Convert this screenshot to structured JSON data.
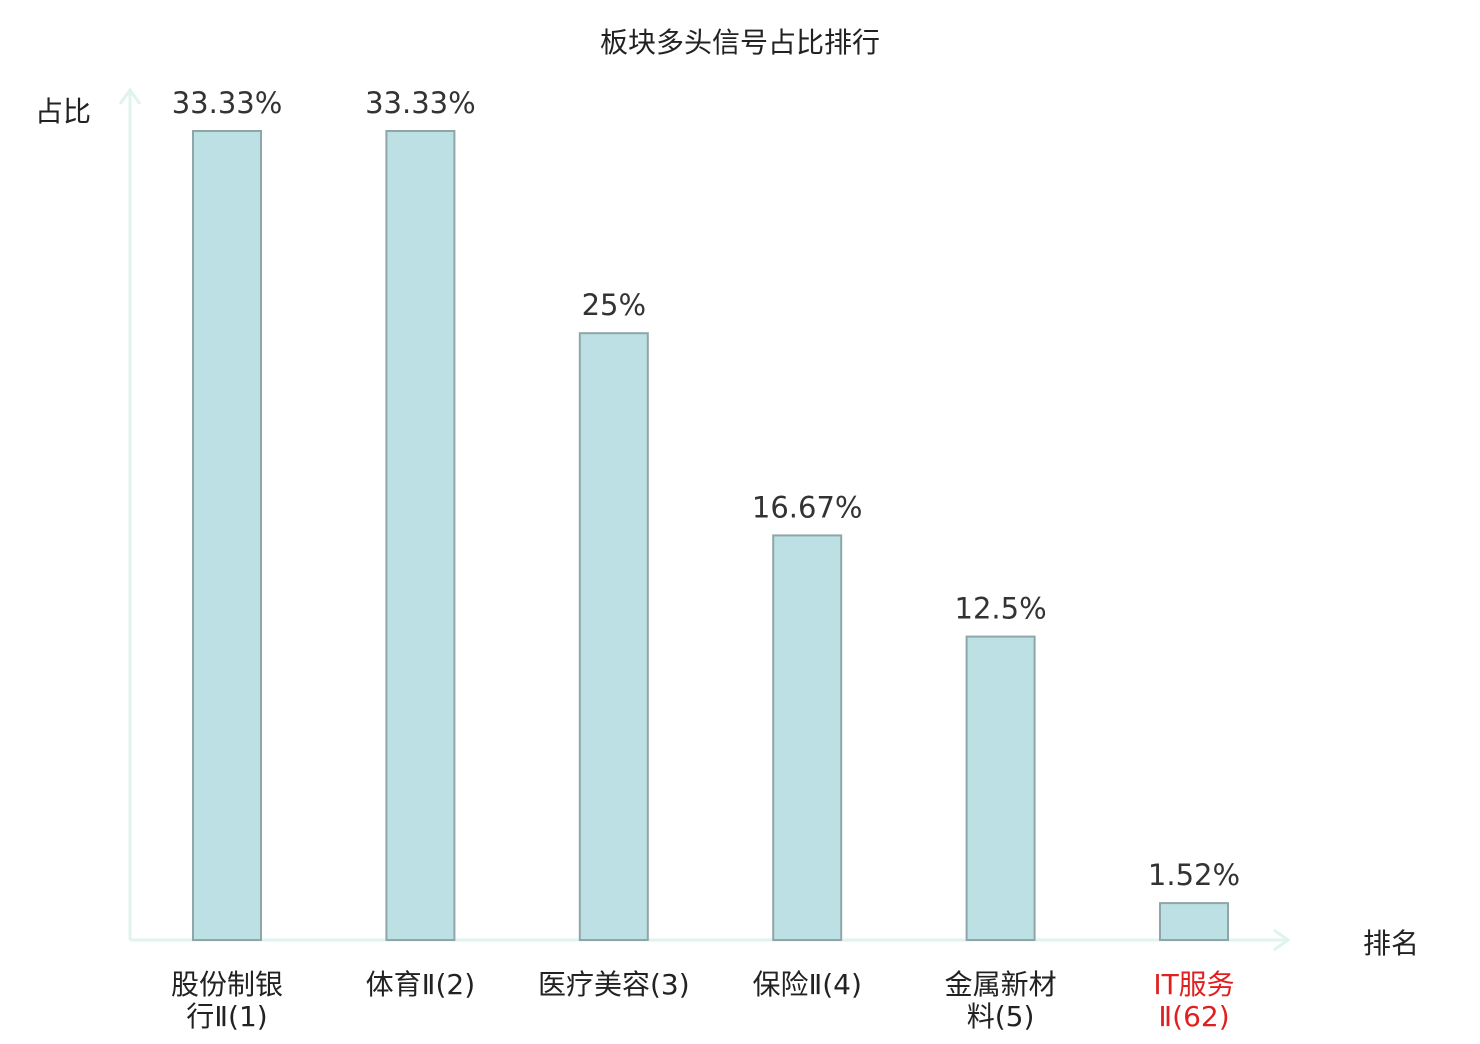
{
  "chart_data": {
    "type": "bar",
    "title": "板块多头信号占比排行",
    "ylabel": "占比",
    "xlabel": "排名",
    "ylim": [
      0,
      33.33
    ],
    "grid": false,
    "categories": [
      [
        "股份制银",
        "行Ⅱ(1)"
      ],
      [
        "体育Ⅱ(2)"
      ],
      [
        "医疗美容(3)"
      ],
      [
        "保险Ⅱ(4)"
      ],
      [
        "金属新材",
        "料(5)"
      ],
      [
        "IT服务",
        "Ⅱ(62)"
      ]
    ],
    "values": [
      33.33,
      33.33,
      25,
      16.67,
      12.5,
      1.52
    ],
    "value_labels": [
      "33.33%",
      "33.33%",
      "25%",
      "16.67%",
      "12.5%",
      "1.52%"
    ],
    "highlight_index": 5,
    "colors": {
      "bar_fill": "#bce0e3",
      "bar_stroke": "#8fa6a8",
      "axis": "#e0f3ef",
      "text": "#333333",
      "highlight_text": "#e02020"
    }
  }
}
